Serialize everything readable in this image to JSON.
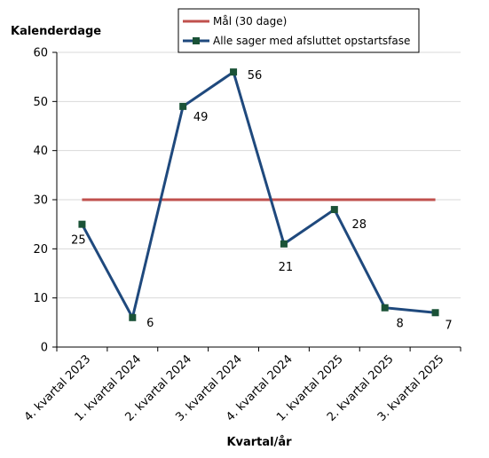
{
  "chart_data": {
    "type": "line",
    "ylabel": "Kalenderdage",
    "xlabel": "Kvartal/år",
    "ylim": [
      0,
      60
    ],
    "yticks": [
      0,
      10,
      20,
      30,
      40,
      50,
      60
    ],
    "grid": true,
    "legend_position": "top-right",
    "categories": [
      "4. kvartal 2023",
      "1. kvartal 2024",
      "2. kvartal 2024",
      "3. kvartal 2024",
      "4. kvartal 2024",
      "1. kvartal 2025",
      "2. kvartal 2025",
      "3. kvartal 2025"
    ],
    "series": [
      {
        "name": "Mål (30 dage)",
        "values": [
          30,
          30,
          30,
          30,
          30,
          30,
          30,
          30
        ],
        "color": "#c0504d",
        "markers": false,
        "data_labels": false
      },
      {
        "name": "Alle sager med afsluttet opstartsfase",
        "values": [
          25,
          6,
          49,
          56,
          21,
          28,
          8,
          7
        ],
        "color": "#1f497d",
        "marker_color": "#1a5237",
        "markers": true,
        "data_labels": true
      }
    ]
  }
}
